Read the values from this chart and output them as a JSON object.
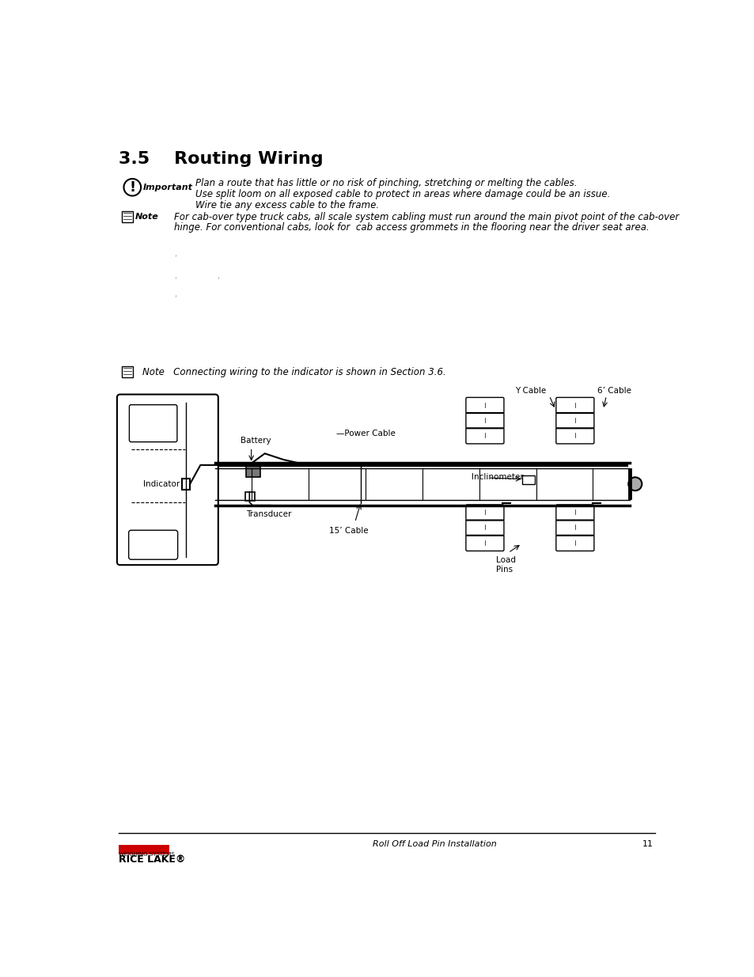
{
  "title": "3.5    Routing Wiring",
  "important_icon_text": "Important",
  "important_lines": [
    "Plan a route that has little or no risk of pinching, stretching or melting the cables.",
    "Use split loom on all exposed cable to protect in areas where damage could be an issue.",
    "Wire tie any excess cable to the frame."
  ],
  "note_icon_text": "Note",
  "note_lines": [
    "For cab-over type truck cabs, all scale system cabling must run around the main pivot point of the cab-over",
    "hinge. For conventional cabs, look for  cab access grommets in the flooring near the driver seat area."
  ],
  "note2_text": "Note   Connecting wiring to the indicator is shown in Section 3.6.",
  "diagram_labels": {
    "battery": "Battery",
    "power_cable": "Power Cable",
    "indicator": "Indicator",
    "transducer": "Transducer",
    "cable15": "15’ Cable",
    "inclinometer": "Inclinometer",
    "y_cable": "Y Cable",
    "cable6": "6’ Cable",
    "load_pins": "Load\nPins"
  },
  "footer_text": "Roll Off Load Pin Installation",
  "page_number": "11",
  "bg_color": "#ffffff",
  "text_color": "#000000",
  "red_color": "#cc0000"
}
